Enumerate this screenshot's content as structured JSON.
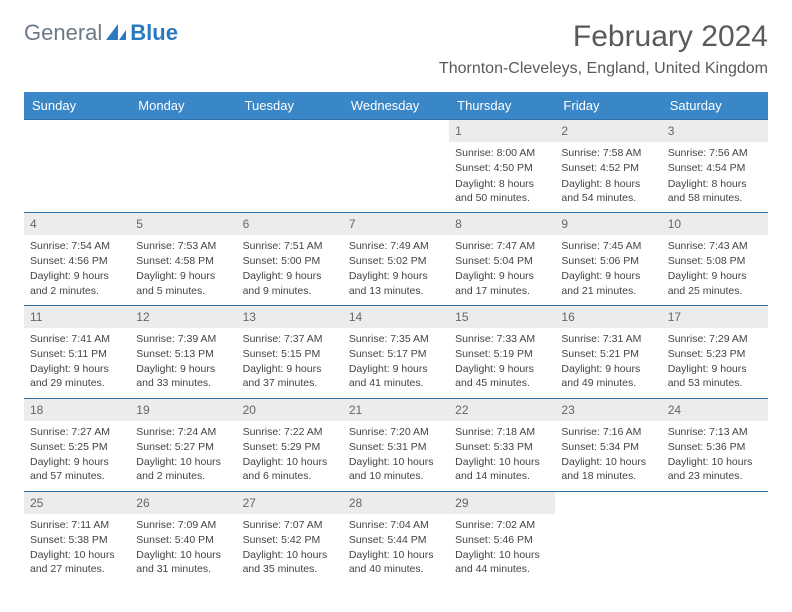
{
  "logo": {
    "text1": "General",
    "text2": "Blue"
  },
  "title": "February 2024",
  "location": "Thornton-Cleveleys, England, United Kingdom",
  "colors": {
    "header_bg": "#3a87c7",
    "week_border": "#2f6fa3",
    "daynum_bg": "#ececec",
    "text": "#444444"
  },
  "weekdays": [
    "Sunday",
    "Monday",
    "Tuesday",
    "Wednesday",
    "Thursday",
    "Friday",
    "Saturday"
  ],
  "weeks": [
    [
      null,
      null,
      null,
      null,
      {
        "n": "1",
        "sr": "8:00 AM",
        "ss": "4:50 PM",
        "dl": "8 hours and 50 minutes."
      },
      {
        "n": "2",
        "sr": "7:58 AM",
        "ss": "4:52 PM",
        "dl": "8 hours and 54 minutes."
      },
      {
        "n": "3",
        "sr": "7:56 AM",
        "ss": "4:54 PM",
        "dl": "8 hours and 58 minutes."
      }
    ],
    [
      {
        "n": "4",
        "sr": "7:54 AM",
        "ss": "4:56 PM",
        "dl": "9 hours and 2 minutes."
      },
      {
        "n": "5",
        "sr": "7:53 AM",
        "ss": "4:58 PM",
        "dl": "9 hours and 5 minutes."
      },
      {
        "n": "6",
        "sr": "7:51 AM",
        "ss": "5:00 PM",
        "dl": "9 hours and 9 minutes."
      },
      {
        "n": "7",
        "sr": "7:49 AM",
        "ss": "5:02 PM",
        "dl": "9 hours and 13 minutes."
      },
      {
        "n": "8",
        "sr": "7:47 AM",
        "ss": "5:04 PM",
        "dl": "9 hours and 17 minutes."
      },
      {
        "n": "9",
        "sr": "7:45 AM",
        "ss": "5:06 PM",
        "dl": "9 hours and 21 minutes."
      },
      {
        "n": "10",
        "sr": "7:43 AM",
        "ss": "5:08 PM",
        "dl": "9 hours and 25 minutes."
      }
    ],
    [
      {
        "n": "11",
        "sr": "7:41 AM",
        "ss": "5:11 PM",
        "dl": "9 hours and 29 minutes."
      },
      {
        "n": "12",
        "sr": "7:39 AM",
        "ss": "5:13 PM",
        "dl": "9 hours and 33 minutes."
      },
      {
        "n": "13",
        "sr": "7:37 AM",
        "ss": "5:15 PM",
        "dl": "9 hours and 37 minutes."
      },
      {
        "n": "14",
        "sr": "7:35 AM",
        "ss": "5:17 PM",
        "dl": "9 hours and 41 minutes."
      },
      {
        "n": "15",
        "sr": "7:33 AM",
        "ss": "5:19 PM",
        "dl": "9 hours and 45 minutes."
      },
      {
        "n": "16",
        "sr": "7:31 AM",
        "ss": "5:21 PM",
        "dl": "9 hours and 49 minutes."
      },
      {
        "n": "17",
        "sr": "7:29 AM",
        "ss": "5:23 PM",
        "dl": "9 hours and 53 minutes."
      }
    ],
    [
      {
        "n": "18",
        "sr": "7:27 AM",
        "ss": "5:25 PM",
        "dl": "9 hours and 57 minutes."
      },
      {
        "n": "19",
        "sr": "7:24 AM",
        "ss": "5:27 PM",
        "dl": "10 hours and 2 minutes."
      },
      {
        "n": "20",
        "sr": "7:22 AM",
        "ss": "5:29 PM",
        "dl": "10 hours and 6 minutes."
      },
      {
        "n": "21",
        "sr": "7:20 AM",
        "ss": "5:31 PM",
        "dl": "10 hours and 10 minutes."
      },
      {
        "n": "22",
        "sr": "7:18 AM",
        "ss": "5:33 PM",
        "dl": "10 hours and 14 minutes."
      },
      {
        "n": "23",
        "sr": "7:16 AM",
        "ss": "5:34 PM",
        "dl": "10 hours and 18 minutes."
      },
      {
        "n": "24",
        "sr": "7:13 AM",
        "ss": "5:36 PM",
        "dl": "10 hours and 23 minutes."
      }
    ],
    [
      {
        "n": "25",
        "sr": "7:11 AM",
        "ss": "5:38 PM",
        "dl": "10 hours and 27 minutes."
      },
      {
        "n": "26",
        "sr": "7:09 AM",
        "ss": "5:40 PM",
        "dl": "10 hours and 31 minutes."
      },
      {
        "n": "27",
        "sr": "7:07 AM",
        "ss": "5:42 PM",
        "dl": "10 hours and 35 minutes."
      },
      {
        "n": "28",
        "sr": "7:04 AM",
        "ss": "5:44 PM",
        "dl": "10 hours and 40 minutes."
      },
      {
        "n": "29",
        "sr": "7:02 AM",
        "ss": "5:46 PM",
        "dl": "10 hours and 44 minutes."
      },
      null,
      null
    ]
  ],
  "labels": {
    "sunrise": "Sunrise: ",
    "sunset": "Sunset: ",
    "daylight": "Daylight: "
  }
}
